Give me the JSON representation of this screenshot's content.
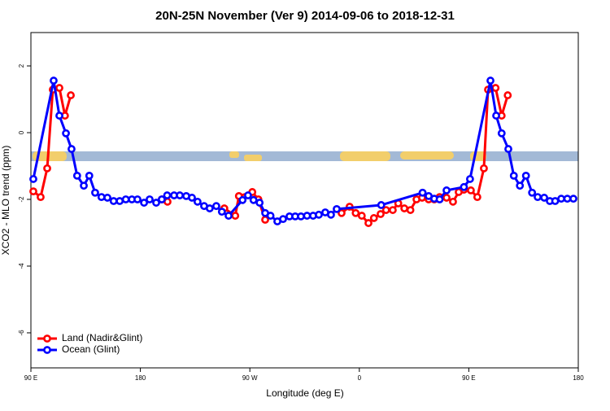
{
  "chart_data": {
    "type": "line",
    "title": "20N-25N November (Ver 9)   2014-09-06 to 2018-12-31",
    "x_label": "Longitude (deg E)",
    "y_label": "XCO2 - MLO trend (ppm)",
    "xlim": [
      90,
      540
    ],
    "ylim": [
      -7.05,
      3
    ],
    "xticks": [
      {
        "value": 90,
        "label": "90 E"
      },
      180,
      {
        "value": 270,
        "label": "90 W"
      },
      {
        "value": 360,
        "label": "0"
      },
      {
        "value": 450,
        "label": "90 E"
      },
      {
        "value": 540,
        "label": "180"
      }
    ],
    "yticks": [
      -6,
      -4,
      -2,
      0,
      2
    ],
    "legend": "bottom-left",
    "series": [
      {
        "name": "Land (Nadir&Glint)",
        "color": "#ff0000",
        "x": [
          92,
          98,
          103.4,
          108,
          113.4,
          118,
          122.8,
          160,
          197.6,
          202.3,
          230,
          249,
          258,
          261,
          272,
          277,
          282.6,
          320,
          345.4,
          352,
          357,
          362,
          367.5,
          372,
          377.5,
          382,
          387.5,
          392,
          397,
          402,
          407,
          411.6,
          417,
          421.6,
          426,
          431.7,
          437,
          441.7,
          446,
          451.7,
          457,
          462.4,
          465.8,
          472,
          477,
          482
        ],
        "values": [
          -1.76,
          -1.93,
          -1.07,
          1.29,
          1.34,
          0.51,
          1.12,
          null,
          -2.0,
          -2.07,
          null,
          -2.27,
          -2.49,
          -1.9,
          -1.78,
          -2.0,
          -2.61,
          null,
          -2.41,
          -2.22,
          -2.41,
          -2.49,
          -2.71,
          -2.56,
          -2.44,
          -2.32,
          -2.32,
          -2.12,
          -2.27,
          -2.32,
          -2.0,
          -1.95,
          -2.0,
          -2.0,
          -1.93,
          -1.95,
          -2.07,
          -1.78,
          -1.71,
          -1.73,
          -1.93,
          -1.07,
          1.29,
          1.34,
          0.51,
          1.12
        ]
      },
      {
        "name": "Ocean (Glint)",
        "color": "#0000ff",
        "x": [
          92,
          108.7,
          113.4,
          118.8,
          123.4,
          128,
          133.5,
          138,
          142.8,
          148,
          152.9,
          158,
          163,
          168,
          173,
          177.6,
          183,
          187.6,
          193,
          197.6,
          202,
          207.7,
          212.4,
          217.7,
          222.4,
          227,
          232.4,
          237,
          242.4,
          247,
          252.5,
          264,
          268.5,
          273,
          278,
          282.6,
          287,
          292.6,
          297.3,
          302.6,
          307.3,
          312,
          317,
          322,
          326.7,
          332,
          336.7,
          341.4,
          378,
          412,
          417,
          421.6,
          426,
          431.7,
          446,
          451,
          467.8,
          472.5,
          477,
          482.5,
          487,
          492,
          497,
          502,
          506.6,
          512,
          516.6,
          521,
          526,
          531,
          536
        ],
        "values": [
          -1.39,
          1.56,
          0.51,
          -0.02,
          -0.49,
          -1.29,
          -1.59,
          -1.29,
          -1.8,
          -1.93,
          -1.95,
          -2.05,
          -2.05,
          -2.0,
          -2.0,
          -2.0,
          -2.1,
          -2.0,
          -2.1,
          -2.0,
          -1.88,
          -1.88,
          -1.88,
          -1.9,
          -1.95,
          -2.07,
          -2.2,
          -2.27,
          -2.2,
          -2.37,
          -2.49,
          -2.02,
          -1.88,
          -2.02,
          -2.1,
          -2.41,
          -2.49,
          -2.66,
          -2.59,
          -2.51,
          -2.51,
          -2.51,
          -2.49,
          -2.49,
          -2.46,
          -2.39,
          -2.46,
          -2.29,
          -2.17,
          -1.8,
          -1.9,
          -1.98,
          -2.0,
          -1.73,
          -1.63,
          -1.39,
          1.56,
          0.51,
          -0.02,
          -0.49,
          -1.29,
          -1.59,
          -1.29,
          -1.8,
          -1.93,
          -1.95,
          -2.05,
          -2.05,
          -1.98,
          -1.98,
          -1.98
        ]
      }
    ]
  }
}
